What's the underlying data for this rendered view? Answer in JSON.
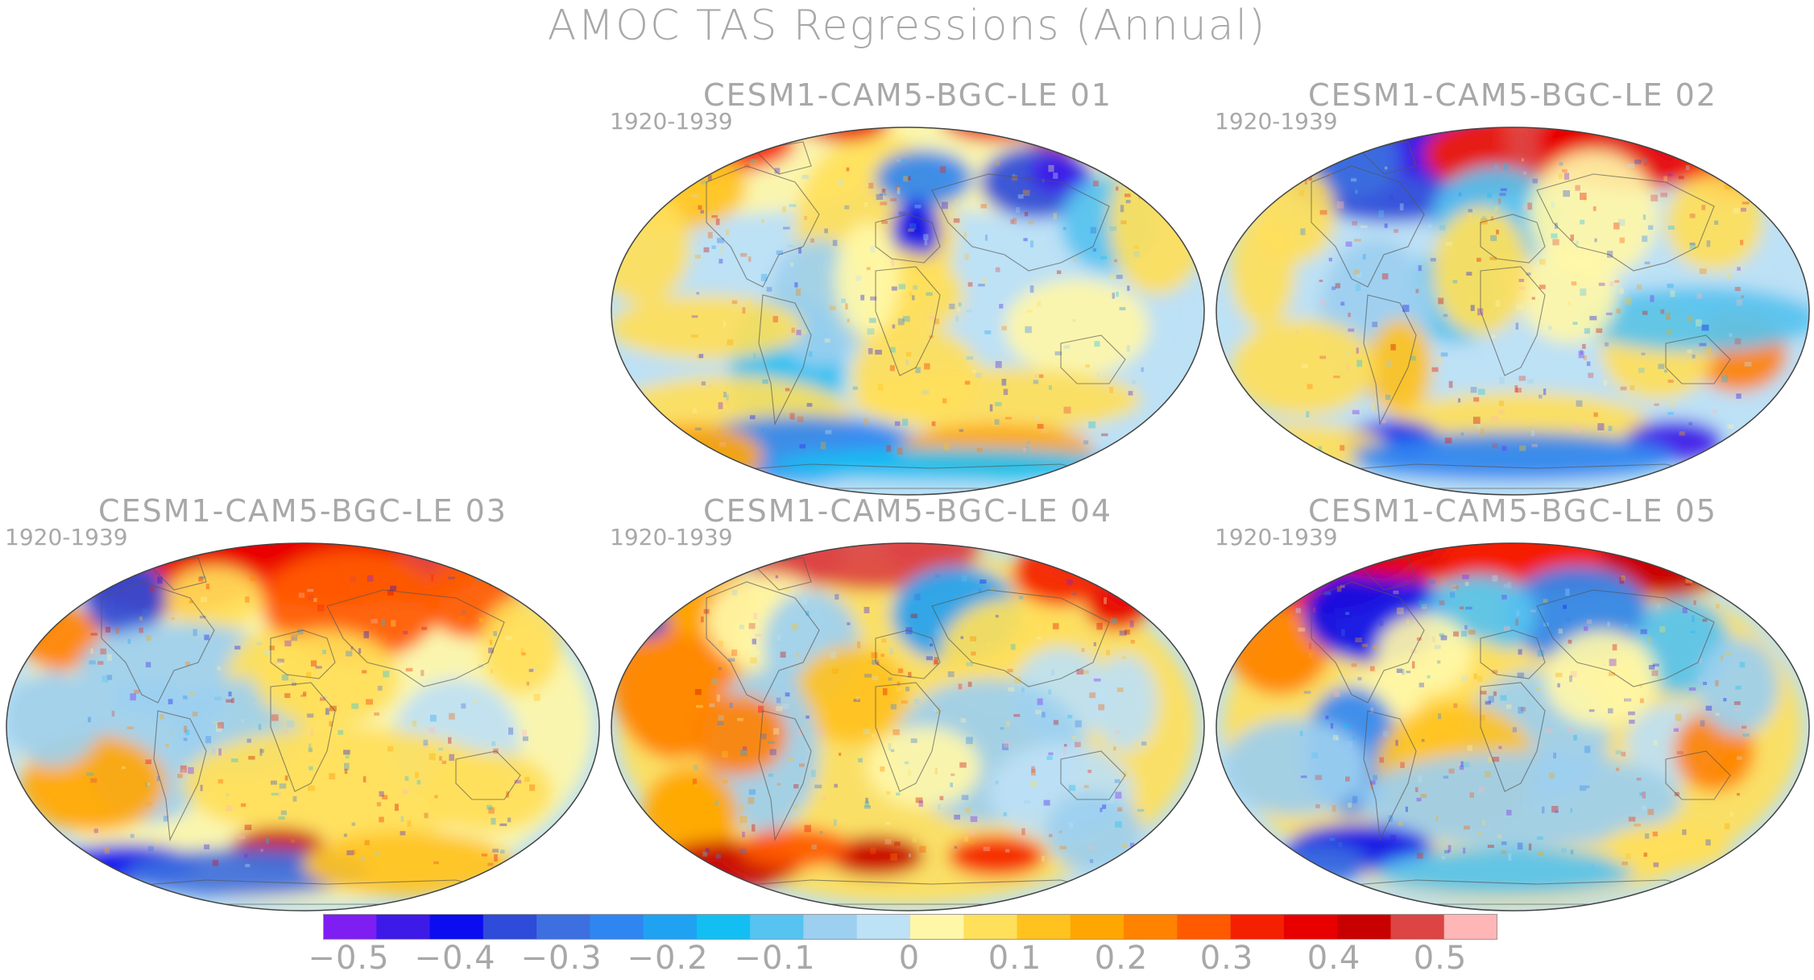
{
  "title": "AMOC TAS Regressions (Annual)",
  "panels": [
    {
      "title": "CESM1-CAM5-BGC-LE 01",
      "period": "1920-1939"
    },
    {
      "title": "CESM1-CAM5-BGC-LE 02",
      "period": "1920-1939"
    },
    {
      "title": "CESM1-CAM5-BGC-LE 03",
      "period": "1920-1939"
    },
    {
      "title": "CESM1-CAM5-BGC-LE 04",
      "period": "1920-1939"
    },
    {
      "title": "CESM1-CAM5-BGC-LE 05",
      "period": "1920-1939"
    }
  ],
  "colorbar": {
    "colors": [
      "#7f1ef2",
      "#3d1ae8",
      "#0c0cf0",
      "#2e4bd9",
      "#3c6fe0",
      "#2f86f0",
      "#1fa2f2",
      "#13bff2",
      "#56c3f0",
      "#9ccff0",
      "#bde1f5",
      "#fff7a8",
      "#ffe05a",
      "#ffc21e",
      "#ffa600",
      "#ff8200",
      "#ff5a00",
      "#f52000",
      "#e80000",
      "#c80000",
      "#dd4444",
      "#ffb6b6"
    ],
    "tick_labels": [
      "-0.5",
      "-0.4",
      "-0.3",
      "-0.2",
      "-0.1",
      "0",
      "0.1",
      "0.2",
      "0.3",
      "0.4",
      "0.5"
    ]
  },
  "map_style": {
    "ocean_base": "#bde1f5",
    "coast": "#555555",
    "outline": "#444444"
  }
}
